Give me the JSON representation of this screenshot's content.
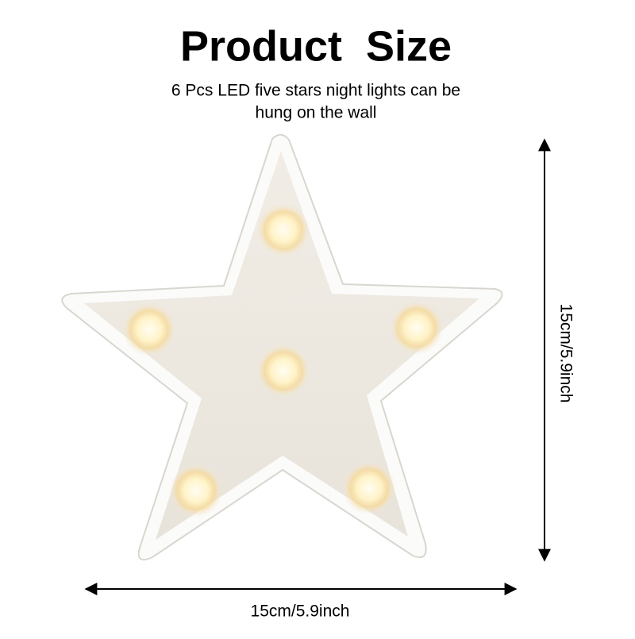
{
  "header": {
    "title": "Product  Size",
    "subtitle_lines": [
      "6 Pcs LED five stars night lights can be",
      "hung on the wall"
    ]
  },
  "dimensions": {
    "height": "15cm/5.9inch",
    "width": "15cm/5.9inch"
  }
}
